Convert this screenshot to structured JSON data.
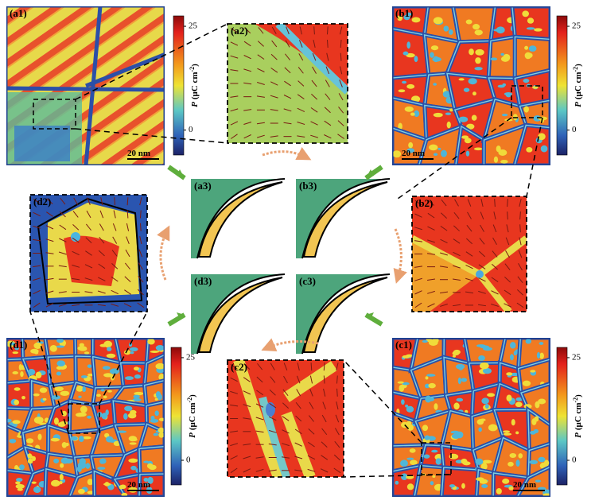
{
  "panels": [
    {
      "label": "(a1)",
      "scale_bar": "20 nm"
    },
    {
      "label": "(a2)"
    },
    {
      "label": "(a3)"
    },
    {
      "label": "(b1)",
      "scale_bar": "20 nm"
    },
    {
      "label": "(b2)"
    },
    {
      "label": "(b3)"
    },
    {
      "label": "(c1)",
      "scale_bar": "20 nm"
    },
    {
      "label": "(c2)"
    },
    {
      "label": "(c3)"
    },
    {
      "label": "(d1)",
      "scale_bar": "20 nm"
    },
    {
      "label": "(d2)"
    },
    {
      "label": "(d3)"
    }
  ],
  "colorbar": {
    "symbol": "P",
    "unit": "(μC cm",
    "exponent": "-2",
    "close": ")",
    "ticks": [
      25,
      0
    ],
    "range": [
      -6,
      27.5
    ]
  }
}
